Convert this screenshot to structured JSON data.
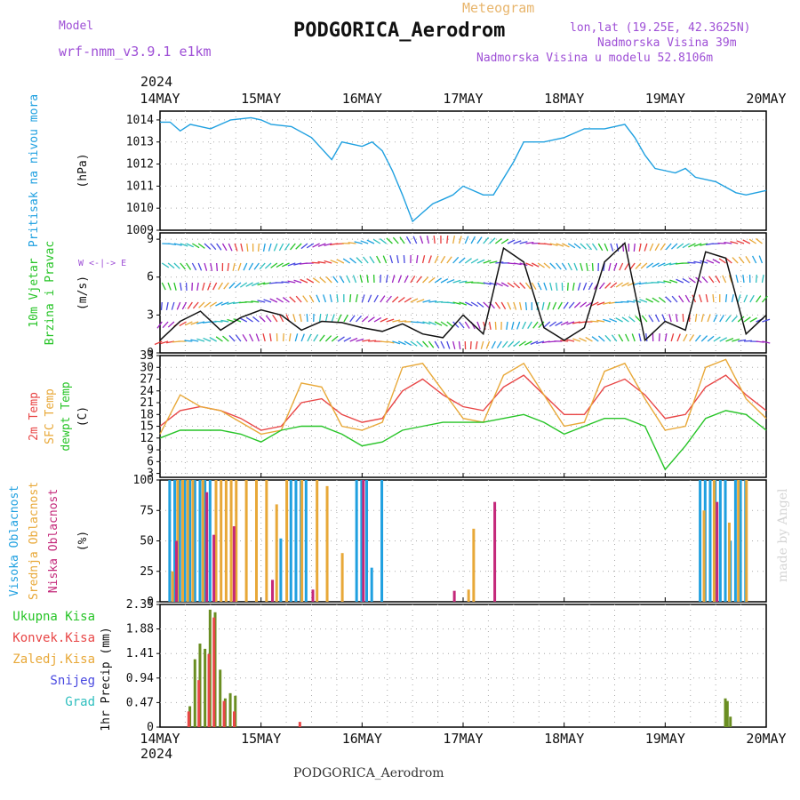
{
  "header": {
    "model_label": "Model",
    "model_name": "wrf-nmm_v3.9.1 e1km",
    "meteogram_label": "Meteogram",
    "station": "PODGORICA_Aerodrom",
    "lonlat": "lon,lat (19.25E, 42.3625N)",
    "elevation": "Nadmorska Visina 39m",
    "model_elevation": "Nadmorska Visina u modelu 52.8106m"
  },
  "footer_station": "PODGORICA_Aerodrom",
  "watermark": "made by Angel",
  "chart_data": [
    {
      "type": "line",
      "panel": "pressure",
      "ylabel_rot": "Pritisak na nivou mora",
      "unit": "(hPa)",
      "ylim": [
        1009,
        1014.4
      ],
      "yticks": [
        "1009",
        "1010",
        "1011",
        "1012",
        "1013",
        "1014"
      ],
      "x_top_year": "2024",
      "x_labels": [
        "14MAY",
        "15MAY",
        "16MAY",
        "17MAY",
        "18MAY",
        "19MAY",
        "20MAY"
      ],
      "x_days": [
        0,
        1,
        2,
        3,
        4,
        5,
        6
      ],
      "series": [
        {
          "x": [
            0,
            0.1,
            0.2,
            0.3,
            0.5,
            0.7,
            0.9,
            1.0,
            1.1,
            1.3,
            1.5,
            1.7,
            1.8,
            1.9,
            2.0,
            2.1,
            2.2,
            2.3,
            2.4,
            2.5,
            2.6,
            2.7,
            2.8,
            2.9,
            3.0,
            3.2,
            3.3,
            3.5,
            3.6,
            3.8,
            4.0,
            4.2,
            4.4,
            4.6,
            4.7,
            4.8,
            4.9,
            5.0,
            5.1,
            5.2,
            5.3,
            5.5,
            5.7,
            5.8,
            6.0
          ],
          "y": [
            1013.9,
            1013.9,
            1013.5,
            1013.8,
            1013.6,
            1014.0,
            1014.1,
            1014.0,
            1013.8,
            1013.7,
            1013.2,
            1012.2,
            1013.0,
            1012.9,
            1012.8,
            1013.0,
            1012.6,
            1011.7,
            1010.6,
            1009.4,
            1009.8,
            1010.2,
            1010.4,
            1010.6,
            1011.0,
            1010.6,
            1010.6,
            1012.1,
            1013.0,
            1013.0,
            1013.2,
            1013.6,
            1013.6,
            1013.8,
            1013.2,
            1012.4,
            1011.8,
            1011.7,
            1011.6,
            1011.8,
            1011.4,
            1011.2,
            1010.7,
            1010.6,
            1010.8
          ]
        }
      ]
    },
    {
      "type": "line",
      "panel": "wind",
      "ylabel_rot": "10m Vjetar Brzina i Pravac",
      "unit": "(m/s)",
      "ylim": [
        0,
        9.5
      ],
      "yticks": [
        "0",
        "3",
        "6",
        "9"
      ],
      "compass": "W <-|-> E",
      "series": [
        {
          "name": "speed",
          "x": [
            0,
            0.2,
            0.4,
            0.6,
            0.8,
            1.0,
            1.2,
            1.4,
            1.6,
            1.8,
            2.0,
            2.2,
            2.4,
            2.6,
            2.8,
            3.0,
            3.2,
            3.4,
            3.6,
            3.8,
            4.0,
            4.2,
            4.4,
            4.6,
            4.8,
            5.0,
            5.2,
            5.4,
            5.6,
            5.8,
            6.0
          ],
          "y": [
            1.0,
            2.5,
            3.3,
            1.8,
            2.8,
            3.4,
            3.0,
            1.8,
            2.5,
            2.4,
            2.0,
            1.7,
            2.3,
            1.5,
            1.2,
            3.0,
            1.5,
            8.3,
            7.2,
            2.0,
            1.0,
            2.0,
            7.2,
            8.7,
            1.0,
            2.5,
            1.8,
            8.0,
            7.5,
            1.5,
            3.0
          ]
        }
      ]
    },
    {
      "type": "line",
      "panel": "temperature",
      "ylabel_rot": "2m Temp SFC Temp dewpt Temp",
      "unit": "(C)",
      "ylim": [
        2,
        33
      ],
      "yticks": [
        "3",
        "6",
        "9",
        "12",
        "15",
        "18",
        "21",
        "24",
        "27",
        "30",
        "33"
      ],
      "series": [
        {
          "name": "2m Temp",
          "color": "#e84646",
          "x": [
            0,
            0.2,
            0.4,
            0.6,
            0.8,
            1.0,
            1.2,
            1.4,
            1.6,
            1.8,
            2.0,
            2.2,
            2.4,
            2.6,
            2.8,
            3.0,
            3.2,
            3.4,
            3.6,
            3.8,
            4.0,
            4.2,
            4.4,
            4.6,
            4.8,
            5.0,
            5.2,
            5.4,
            5.6,
            5.8,
            6.0
          ],
          "y": [
            15,
            19,
            20,
            19,
            17,
            14,
            15,
            21,
            22,
            18,
            16,
            17,
            24,
            27,
            23,
            20,
            19,
            25,
            28,
            23,
            18,
            18,
            25,
            27,
            23,
            17,
            18,
            25,
            28,
            23,
            19
          ]
        },
        {
          "name": "SFC Temp",
          "color": "#e8a838",
          "x": [
            0,
            0.2,
            0.4,
            0.6,
            0.8,
            1.0,
            1.2,
            1.4,
            1.6,
            1.8,
            2.0,
            2.2,
            2.4,
            2.6,
            2.8,
            3.0,
            3.2,
            3.4,
            3.6,
            3.8,
            4.0,
            4.2,
            4.4,
            4.6,
            4.8,
            5.0,
            5.2,
            5.4,
            5.6,
            5.8,
            6.0
          ],
          "y": [
            13,
            23,
            20,
            19,
            16,
            13,
            14,
            26,
            25,
            15,
            14,
            16,
            30,
            31,
            24,
            17,
            16,
            28,
            31,
            23,
            15,
            16,
            29,
            31,
            22,
            14,
            15,
            30,
            32,
            22,
            17
          ]
        },
        {
          "name": "dewpt Temp",
          "color": "#27c427",
          "x": [
            0,
            0.2,
            0.4,
            0.6,
            0.8,
            1.0,
            1.2,
            1.4,
            1.6,
            1.8,
            2.0,
            2.2,
            2.4,
            2.6,
            2.8,
            3.0,
            3.2,
            3.4,
            3.6,
            3.8,
            4.0,
            4.2,
            4.4,
            4.6,
            4.8,
            5.0,
            5.2,
            5.4,
            5.6,
            5.8,
            6.0
          ],
          "y": [
            12,
            14,
            14,
            14,
            13,
            11,
            14,
            15,
            15,
            13,
            10,
            11,
            14,
            15,
            16,
            16,
            16,
            17,
            18,
            16,
            13,
            15,
            17,
            17,
            15,
            4,
            10,
            17,
            19,
            18,
            14
          ]
        }
      ]
    },
    {
      "type": "bar",
      "panel": "clouds",
      "ylabel_rot": "Visoka Oblacnost Srednja Oblacnost Niska Oblacnost",
      "unit": "(%)",
      "ylim": [
        0,
        100
      ],
      "yticks": [
        "0",
        "25",
        "50",
        "75",
        "100"
      ],
      "series": [
        {
          "name": "Visoka Oblacnost",
          "color": "#1fa0e0",
          "x": [
            0.1,
            0.15,
            0.2,
            0.25,
            0.3,
            0.35,
            0.4,
            0.45,
            0.5,
            1.2,
            1.3,
            1.35,
            1.4,
            1.45,
            1.95,
            2.0,
            2.05,
            2.1,
            2.2,
            5.35,
            5.4,
            5.45,
            5.5,
            5.55,
            5.6,
            5.65,
            5.7,
            5.75,
            5.8
          ],
          "values": [
            100,
            100,
            100,
            100,
            100,
            100,
            100,
            100,
            100,
            52,
            100,
            100,
            100,
            100,
            100,
            100,
            100,
            28,
            100,
            100,
            100,
            100,
            100,
            100,
            100,
            50,
            100,
            100,
            100
          ]
        },
        {
          "name": "Srednja Oblacnost",
          "color": "#e8a838",
          "x": [
            0.12,
            0.17,
            0.22,
            0.27,
            0.32,
            0.42,
            0.55,
            0.6,
            0.65,
            0.7,
            0.75,
            0.85,
            0.95,
            1.05,
            1.15,
            1.25,
            1.4,
            1.55,
            1.65,
            1.8,
            3.05,
            3.1,
            5.38,
            5.48,
            5.63,
            5.72,
            5.8
          ],
          "values": [
            25,
            100,
            100,
            100,
            100,
            100,
            100,
            100,
            100,
            100,
            100,
            100,
            100,
            100,
            80,
            100,
            100,
            100,
            95,
            40,
            10,
            60,
            75,
            100,
            65,
            100,
            100
          ]
        },
        {
          "name": "Niska Oblacnost",
          "color": "#c4287a",
          "x": [
            0.15,
            0.45,
            0.52,
            0.72,
            1.1,
            1.5,
            2.0,
            2.9,
            3.3,
            5.5
          ],
          "values": [
            50,
            90,
            55,
            62,
            18,
            10,
            100,
            9,
            82,
            82
          ]
        }
      ]
    },
    {
      "type": "bar",
      "panel": "precip",
      "ylabel_rot": "1hr Precip (mm)",
      "ylim": [
        0,
        2.35
      ],
      "yticks": [
        "0",
        "0.47",
        "0.94",
        "1.41",
        "1.88",
        "2.35"
      ],
      "legend": [
        "Ukupna Kisa",
        "Konvek.Kisa",
        "Zaledj.Kisa",
        "Snijeg",
        "Grad"
      ],
      "legend_colors": [
        "#27c427",
        "#e84646",
        "#e8a838",
        "#4848e0",
        "#2fbfbf"
      ],
      "x_bottom_labels": [
        "14MAY",
        "15MAY",
        "16MAY",
        "17MAY",
        "18MAY",
        "19MAY",
        "20MAY"
      ],
      "x_bottom_year": "2024",
      "series": [
        {
          "name": "Ukupna Kisa",
          "color": "#6a8e22",
          "x": [
            0.3,
            0.35,
            0.4,
            0.45,
            0.5,
            0.55,
            0.6,
            0.65,
            0.7,
            0.75,
            5.6,
            5.62,
            5.65
          ],
          "values": [
            0.4,
            1.3,
            1.6,
            1.5,
            2.25,
            2.2,
            1.1,
            0.55,
            0.65,
            0.6,
            0.55,
            0.5,
            0.2
          ]
        },
        {
          "name": "Konvek.Kisa",
          "color": "#e84646",
          "x": [
            0.28,
            0.38,
            0.48,
            0.53,
            0.63,
            0.73,
            1.38
          ],
          "values": [
            0.3,
            0.9,
            1.4,
            2.1,
            0.5,
            0.3,
            0.1
          ]
        }
      ]
    }
  ]
}
